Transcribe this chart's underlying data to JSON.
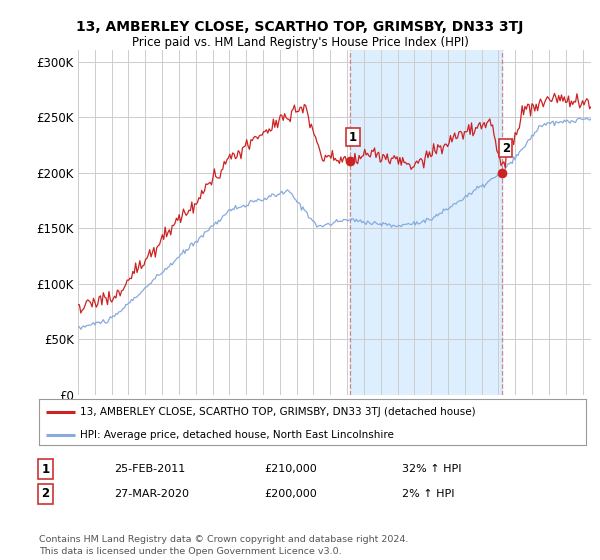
{
  "title": "13, AMBERLEY CLOSE, SCARTHO TOP, GRIMSBY, DN33 3TJ",
  "subtitle": "Price paid vs. HM Land Registry's House Price Index (HPI)",
  "ylabel_ticks": [
    "£0",
    "£50K",
    "£100K",
    "£150K",
    "£200K",
    "£250K",
    "£300K"
  ],
  "ylim": [
    0,
    310000
  ],
  "xlim_start": 1995.0,
  "xlim_end": 2025.5,
  "red_color": "#cc2222",
  "blue_color": "#88aadd",
  "shade_color": "#ddeeff",
  "marker1_date": 2011.15,
  "marker1_value": 210000,
  "marker2_date": 2020.23,
  "marker2_value": 200000,
  "legend_line1": "13, AMBERLEY CLOSE, SCARTHO TOP, GRIMSBY, DN33 3TJ (detached house)",
  "legend_line2": "HPI: Average price, detached house, North East Lincolnshire",
  "note1_num": "1",
  "note1_date": "25-FEB-2011",
  "note1_price": "£210,000",
  "note1_hpi": "32% ↑ HPI",
  "note2_num": "2",
  "note2_date": "27-MAR-2020",
  "note2_price": "£200,000",
  "note2_hpi": "2% ↑ HPI",
  "footer": "Contains HM Land Registry data © Crown copyright and database right 2024.\nThis data is licensed under the Open Government Licence v3.0.",
  "bg_color": "#ffffff",
  "plot_bg_color": "#ffffff",
  "grid_color": "#cccccc",
  "vline_color": "#cc8888"
}
